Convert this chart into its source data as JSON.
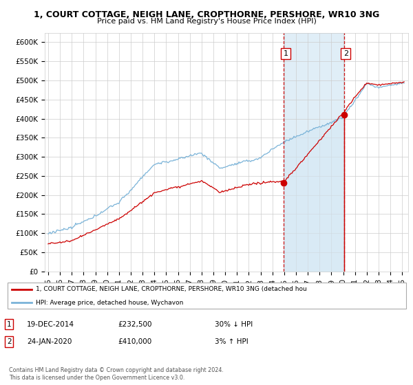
{
  "title_line1": "1, COURT COTTAGE, NEIGH LANE, CROPTHORNE, PERSHORE, WR10 3NG",
  "title_line2": "Price paid vs. HM Land Registry's House Price Index (HPI)",
  "ylabel_ticks": [
    "£0",
    "£50K",
    "£100K",
    "£150K",
    "£200K",
    "£250K",
    "£300K",
    "£350K",
    "£400K",
    "£450K",
    "£500K",
    "£550K",
    "£600K"
  ],
  "ytick_vals": [
    0,
    50000,
    100000,
    150000,
    200000,
    250000,
    300000,
    350000,
    400000,
    450000,
    500000,
    550000,
    600000
  ],
  "ylim": [
    0,
    625000
  ],
  "xlim_start": 1994.7,
  "xlim_end": 2025.5,
  "hpi_color": "#7ab3d8",
  "hpi_fill_color": "#d4e8f5",
  "price_color": "#cc0000",
  "background_color": "#ffffff",
  "grid_color": "#cccccc",
  "sale1_x": 2014.97,
  "sale1_y": 232500,
  "sale2_x": 2020.07,
  "sale2_y": 410000,
  "legend_label1": "1, COURT COTTAGE, NEIGH LANE, CROPTHORNE, PERSHORE, WR10 3NG (detached hou",
  "legend_label2": "HPI: Average price, detached house, Wychavon",
  "table_row1": [
    "1",
    "19-DEC-2014",
    "£232,500",
    "30% ↓ HPI"
  ],
  "table_row2": [
    "2",
    "24-JAN-2020",
    "£410,000",
    "3% ↑ HPI"
  ],
  "footnote": "Contains HM Land Registry data © Crown copyright and database right 2024.\nThis data is licensed under the Open Government Licence v3.0.",
  "xtick_years": [
    1995,
    1996,
    1997,
    1998,
    1999,
    2000,
    2001,
    2002,
    2003,
    2004,
    2005,
    2006,
    2007,
    2008,
    2009,
    2010,
    2011,
    2012,
    2013,
    2014,
    2015,
    2016,
    2017,
    2018,
    2019,
    2020,
    2021,
    2022,
    2023,
    2024,
    2025
  ],
  "shade_x1": 2014.97,
  "shade_x2": 2020.07
}
